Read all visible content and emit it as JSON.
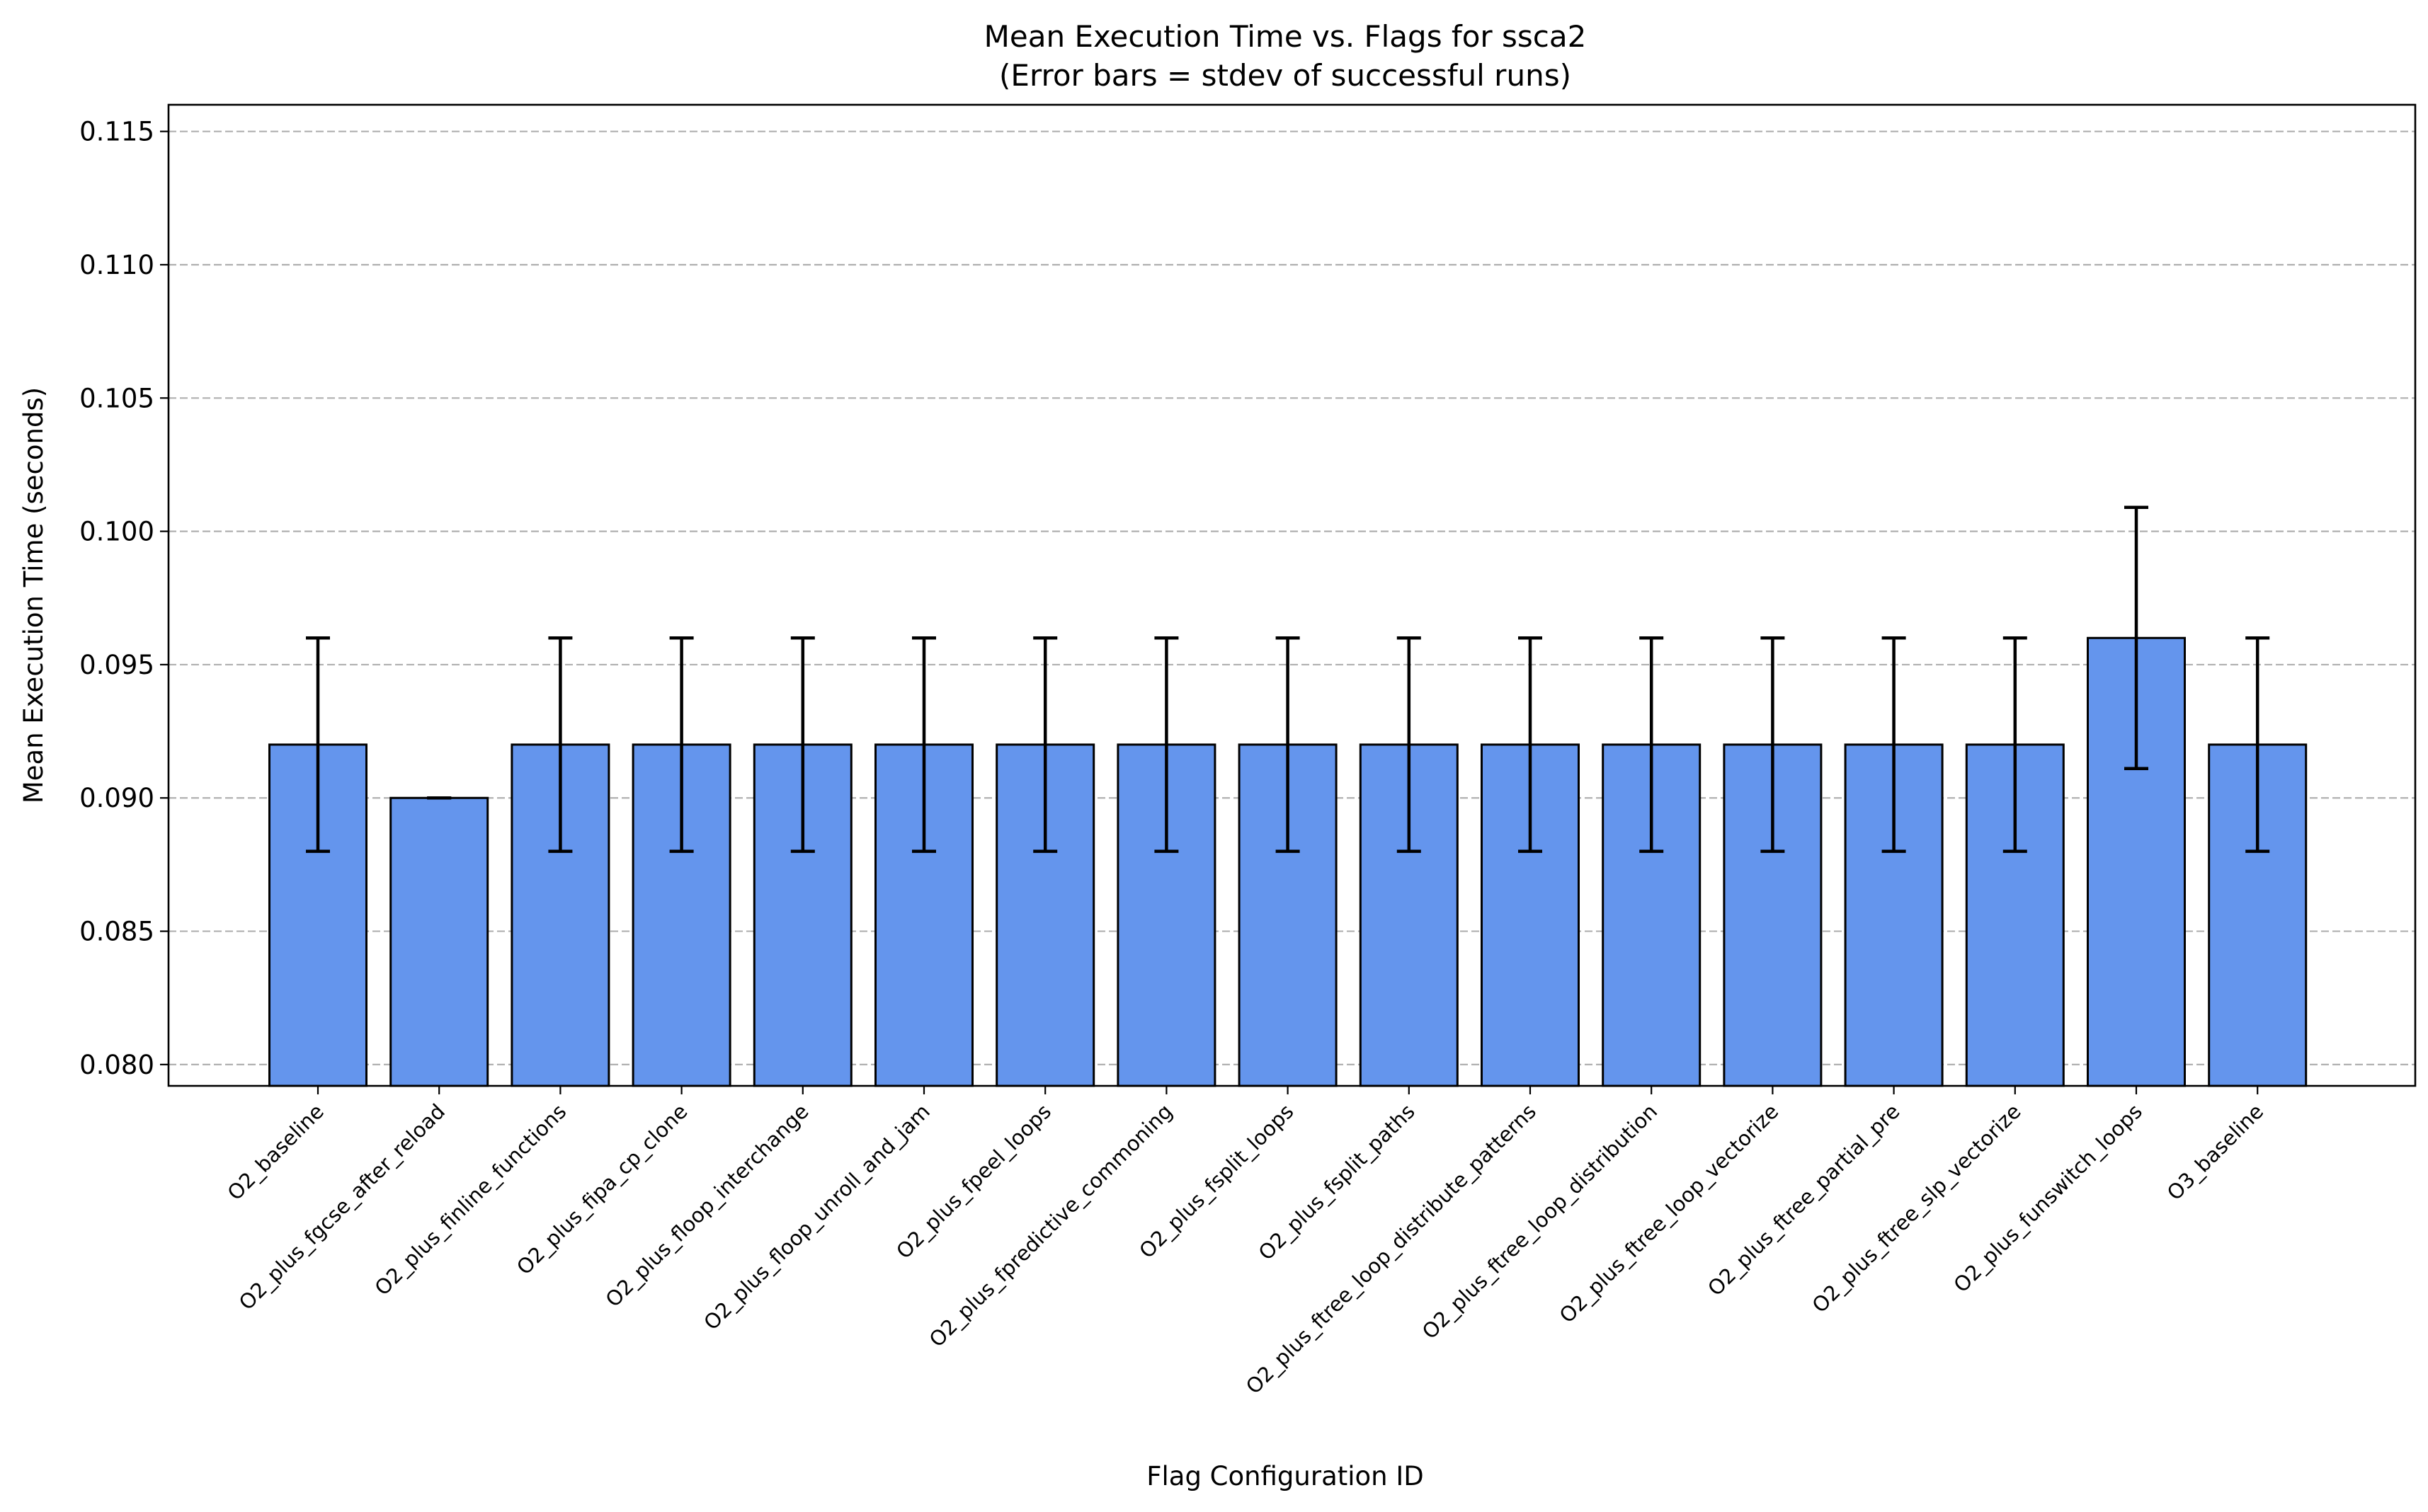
{
  "chart_data": {
    "type": "bar",
    "title": "Mean Execution Time vs. Flags for ssca2",
    "subtitle": "(Error bars = stdev of successful runs)",
    "xlabel": "Flag Configuration ID",
    "ylabel": "Mean Execution Time (seconds)",
    "ylim": [
      0.0792,
      0.116
    ],
    "yticks": [
      0.08,
      0.085,
      0.09,
      0.095,
      0.1,
      0.105,
      0.11,
      0.115
    ],
    "ytick_labels": [
      "0.080",
      "0.085",
      "0.090",
      "0.095",
      "0.100",
      "0.105",
      "0.110",
      "0.115"
    ],
    "grid": "y-dashed",
    "bar_color": "#6495ED",
    "categories": [
      "O2_baseline",
      "O2_plus_fgcse_after_reload",
      "O2_plus_finline_functions",
      "O2_plus_fipa_cp_clone",
      "O2_plus_floop_interchange",
      "O2_plus_floop_unroll_and_jam",
      "O2_plus_fpeel_loops",
      "O2_plus_fpredictive_commoning",
      "O2_plus_fsplit_loops",
      "O2_plus_fsplit_paths",
      "O2_plus_ftree_loop_distribute_patterns",
      "O2_plus_ftree_loop_distribution",
      "O2_plus_ftree_loop_vectorize",
      "O2_plus_ftree_partial_pre",
      "O2_plus_ftree_slp_vectorize",
      "O2_plus_funswitch_loops",
      "O3_baseline"
    ],
    "values": [
      0.092,
      0.09,
      0.092,
      0.092,
      0.092,
      0.092,
      0.092,
      0.092,
      0.092,
      0.092,
      0.092,
      0.092,
      0.092,
      0.092,
      0.092,
      0.096,
      0.092
    ],
    "errors": [
      0.004,
      0.0,
      0.004,
      0.004,
      0.004,
      0.004,
      0.004,
      0.004,
      0.004,
      0.004,
      0.004,
      0.004,
      0.004,
      0.004,
      0.004,
      0.0049,
      0.004
    ]
  }
}
